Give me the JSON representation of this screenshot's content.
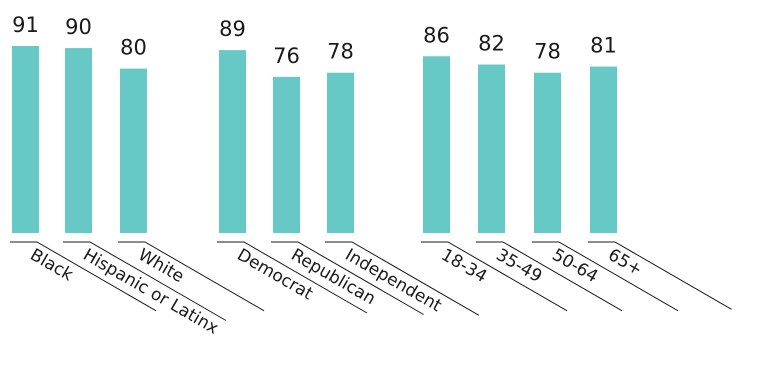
{
  "chart_data": {
    "type": "bar",
    "categories": [
      "Black",
      "Hispanic or Latinx",
      "White",
      "Democrat",
      "Republican",
      "Independent",
      "18-34",
      "35-49",
      "50-64",
      "65+"
    ],
    "values": [
      91,
      90,
      80,
      89,
      76,
      78,
      86,
      82,
      78,
      81
    ],
    "groups": [
      [
        "Black",
        "Hispanic or Latinx",
        "White"
      ],
      [
        "Democrat",
        "Republican",
        "Independent"
      ],
      [
        "18-34",
        "35-49",
        "50-64",
        "65+"
      ]
    ],
    "bar_color": "#66c9c6",
    "grid": false,
    "legend": "none"
  }
}
